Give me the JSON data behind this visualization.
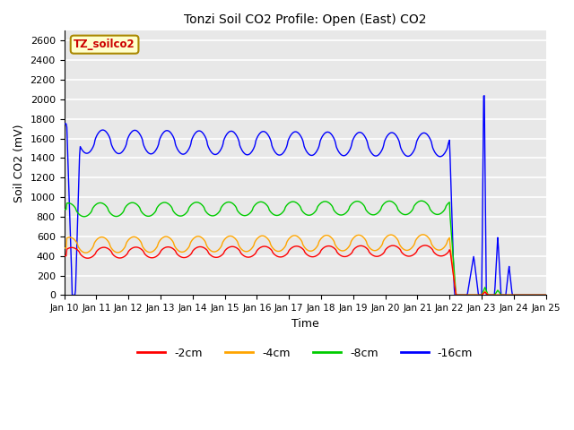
{
  "title": "Tonzi Soil CO2 Profile: Open (East) CO2",
  "xlabel": "Time",
  "ylabel": "Soil CO2 (mV)",
  "ylim": [
    0,
    2700
  ],
  "yticks": [
    0,
    200,
    400,
    600,
    800,
    1000,
    1200,
    1400,
    1600,
    1800,
    2000,
    2200,
    2400,
    2600
  ],
  "colors": {
    "-2cm": "#ff0000",
    "-4cm": "#ffa500",
    "-8cm": "#00cc00",
    "-16cm": "#0000ff"
  },
  "legend_label": "TZ_soilco2",
  "legend_box_color": "#ffffcc",
  "legend_box_edge": "#aa8800",
  "background_color": "#e8e8e8",
  "grid_color": "#ffffff",
  "n_days": 15,
  "start_day": 10,
  "blue_base": 1570,
  "blue_amp": 120,
  "green_base": 870,
  "green_amp": 70,
  "orange_base": 510,
  "orange_amp": 80,
  "red_base": 430,
  "red_amp": 55
}
